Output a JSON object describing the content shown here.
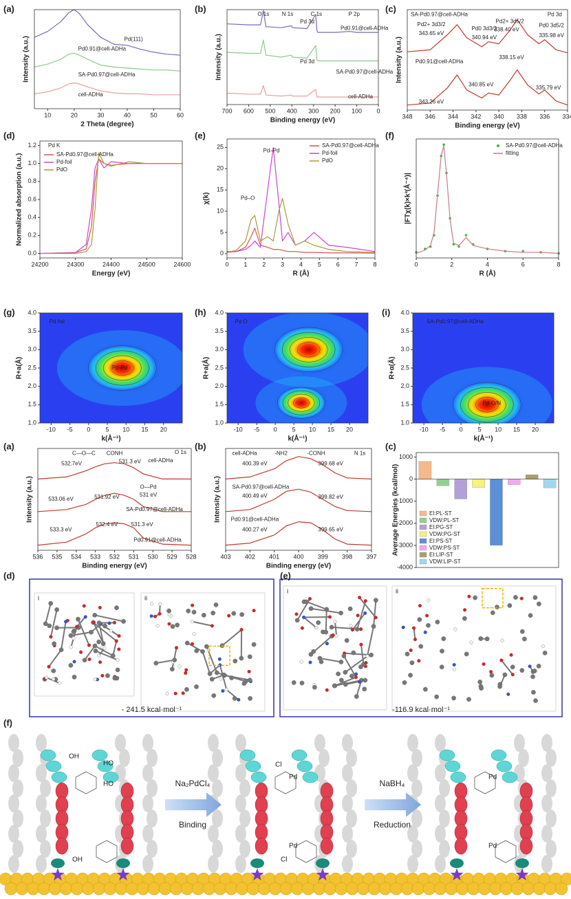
{
  "chart_data": [
    {
      "type": "line",
      "panel": "(a)",
      "xlabel": "2 Theta (degree)",
      "ylabel": "Intensity (a.u.)",
      "xlim": [
        5,
        60
      ],
      "xticks": [
        10,
        20,
        30,
        40,
        50,
        60
      ],
      "ylim": [
        0,
        1
      ],
      "legend": "inline",
      "annotations": [
        "Pd(111)"
      ],
      "x": [
        5,
        10,
        15,
        18,
        20,
        22,
        25,
        30,
        35,
        40,
        45,
        50,
        55,
        60
      ],
      "series": [
        {
          "name": "Pd0.91@cell-ADHa",
          "color": "#7b68b5",
          "values": [
            0.72,
            0.78,
            0.88,
            0.97,
            1.0,
            0.96,
            0.85,
            0.72,
            0.65,
            0.64,
            0.6,
            0.57,
            0.55,
            0.54
          ]
        },
        {
          "name": "SA-Pd0.97@cell-ADHa",
          "color": "#8cc98c",
          "values": [
            0.42,
            0.45,
            0.5,
            0.55,
            0.56,
            0.54,
            0.5,
            0.44,
            0.42,
            0.41,
            0.4,
            0.39,
            0.39,
            0.38
          ]
        },
        {
          "name": "cell-ADHa",
          "color": "#e8a0a0",
          "values": [
            0.15,
            0.17,
            0.21,
            0.25,
            0.26,
            0.25,
            0.22,
            0.18,
            0.16,
            0.15,
            0.15,
            0.14,
            0.14,
            0.14
          ]
        }
      ]
    },
    {
      "type": "line",
      "panel": "(b)",
      "xlabel": "Binding energy (eV)",
      "ylabel": "Intensity (a.u.)",
      "xlim": [
        700,
        0
      ],
      "xticks": [
        700,
        600,
        500,
        400,
        300,
        200,
        100,
        0
      ],
      "ylim": [
        0,
        1
      ],
      "legend": "inline",
      "annotations": [
        "O 1s",
        "N 1s",
        "C 1s",
        "P 2p",
        "Pd 3d",
        "Pd 3d"
      ],
      "x": [
        700,
        600,
        545,
        532,
        520,
        450,
        402,
        398,
        330,
        290,
        284,
        280,
        200,
        133,
        100,
        0
      ],
      "series": [
        {
          "name": "Pd0.91@cell-ADHa",
          "color": "#7b68b5",
          "values": [
            0.85,
            0.84,
            0.84,
            0.99,
            0.82,
            0.81,
            0.83,
            0.81,
            0.8,
            0.95,
            0.78,
            0.76,
            0.76,
            0.77,
            0.76,
            0.76
          ]
        },
        {
          "name": "SA-Pd0.97@cell-ADHa",
          "color": "#8cc98c",
          "values": [
            0.55,
            0.54,
            0.54,
            0.68,
            0.52,
            0.5,
            0.52,
            0.5,
            0.49,
            0.62,
            0.47,
            0.46,
            0.46,
            0.46,
            0.46,
            0.46
          ]
        },
        {
          "name": "cell-ADHa",
          "color": "#e8a0a0",
          "values": [
            0.12,
            0.11,
            0.11,
            0.2,
            0.1,
            0.09,
            0.1,
            0.09,
            0.09,
            0.16,
            0.08,
            0.08,
            0.08,
            0.08,
            0.08,
            0.08
          ]
        }
      ]
    },
    {
      "type": "line",
      "panel": "(c)",
      "xlabel": "Binding energy (eV)",
      "ylabel": "Intensity (a.u.)",
      "xlim": [
        348,
        334
      ],
      "xticks": [
        348,
        346,
        344,
        342,
        340,
        338,
        336,
        334
      ],
      "ylim": [
        0,
        1
      ],
      "annotations": [
        "Pd 3d",
        "SA-Pd0.97@cell-ADHa",
        "Pd2+ 3d3/2",
        "343.65 eV",
        "Pd2+ 3d5/2",
        "338.40 eV",
        "Pd0 3d3/2",
        "340.94 eV",
        "Pd0 3d5/2",
        "335.98 eV",
        "Pd0.91@cell-ADHa",
        "343.26 eV",
        "340.85 eV",
        "338.15 eV",
        "335.79 eV"
      ],
      "x": [
        348,
        346,
        344.5,
        343.65,
        342.8,
        341.5,
        340.9,
        340,
        339,
        338.4,
        337.5,
        336.5,
        336,
        335,
        334
      ],
      "series": [
        {
          "color": "#c0392b",
          "values": [
            0.58,
            0.6,
            0.75,
            0.85,
            0.72,
            0.63,
            0.68,
            0.66,
            0.8,
            0.9,
            0.75,
            0.66,
            0.7,
            0.6,
            0.57
          ]
        },
        {
          "color": "#c0392b",
          "values": [
            0.05,
            0.07,
            0.22,
            0.35,
            0.2,
            0.12,
            0.17,
            0.15,
            0.3,
            0.4,
            0.25,
            0.16,
            0.2,
            0.09,
            0.05
          ]
        }
      ]
    },
    {
      "type": "line",
      "panel": "(d)",
      "xlabel": "Energy (eV)",
      "ylabel": "Normalized absorption (a.u.)",
      "xlim": [
        24200,
        24600
      ],
      "xticks": [
        24200,
        24300,
        24400,
        24500,
        24600
      ],
      "ylim": [
        -0.05,
        1.25
      ],
      "yticks": [
        {
          "value": 0,
          "label": "0.0"
        },
        0.2,
        0.4,
        0.6,
        0.8,
        {
          "value": 1,
          "label": "1.0"
        },
        1.2
      ],
      "legend": "upper left",
      "annotations": [
        "Pd K"
      ],
      "x": [
        24200,
        24300,
        24330,
        24345,
        24355,
        24365,
        24380,
        24400,
        24450,
        24500,
        24600
      ],
      "series": [
        {
          "name": "SA-Pd0.97@cell-ADHa",
          "color": "#d9534f",
          "values": [
            0.0,
            0.01,
            0.05,
            0.3,
            0.8,
            1.05,
            1.0,
            0.98,
            1.0,
            1.0,
            1.0
          ]
        },
        {
          "name": "Pd-foil",
          "color": "#cc44cc",
          "values": [
            0.0,
            0.01,
            0.1,
            0.5,
            0.95,
            1.05,
            0.95,
            1.02,
            1.0,
            1.0,
            1.0
          ]
        },
        {
          "name": "PdO",
          "color": "#a89a3a",
          "values": [
            0.0,
            0.0,
            0.02,
            0.1,
            0.5,
            1.12,
            1.0,
            0.97,
            1.02,
            1.0,
            1.0
          ]
        }
      ]
    },
    {
      "type": "line",
      "panel": "(e)",
      "xlabel": "R (Å)",
      "ylabel": "χ(k)",
      "xlim": [
        0,
        8
      ],
      "xticks": [
        0,
        1,
        2,
        3,
        4,
        5,
        6,
        7,
        8
      ],
      "ylim": [
        -1,
        27
      ],
      "yticks": [
        0,
        5,
        10,
        15,
        20,
        25
      ],
      "legend": "upper right",
      "annotations": [
        "Pd–Pd",
        "Pd–O"
      ],
      "x": [
        0,
        0.5,
        1,
        1.3,
        1.5,
        1.8,
        2.2,
        2.5,
        2.8,
        3.0,
        3.3,
        3.7,
        4.2,
        4.7,
        5.5,
        6.5,
        8
      ],
      "series": [
        {
          "name": "SA-Pd0.97@cell-ADHa",
          "color": "#d9534f",
          "values": [
            0.5,
            0.5,
            1.5,
            4,
            6,
            2,
            1.5,
            1,
            1,
            0.8,
            0.5,
            0.5,
            0.3,
            0.3,
            0.2,
            0.2,
            0.1
          ]
        },
        {
          "name": "Pd-foil",
          "color": "#cc44cc",
          "values": [
            0.3,
            0.5,
            1,
            2,
            3,
            1.5,
            15,
            25,
            12,
            3,
            5,
            2,
            3,
            5,
            2,
            1.5,
            0.5
          ]
        },
        {
          "name": "PdO",
          "color": "#a89a3a",
          "values": [
            0.3,
            0.8,
            3,
            8,
            9,
            3,
            4,
            3,
            10,
            13,
            7,
            2,
            3,
            2,
            1,
            0.5,
            0.3
          ]
        }
      ]
    },
    {
      "type": "line",
      "panel": "(f)",
      "xlabel": "R (Å)",
      "ylabel": "|FTχ(k)×k³(Å⁻⁴)|",
      "xlim": [
        0,
        8
      ],
      "xticks": [
        0,
        2,
        4,
        6,
        8
      ],
      "ylim": [
        0,
        1.05
      ],
      "legend": "upper right",
      "x": [
        0,
        0.5,
        0.8,
        1,
        1.2,
        1.4,
        1.55,
        1.7,
        1.9,
        2.1,
        2.4,
        2.8,
        3.2,
        4,
        5,
        6,
        7,
        8
      ],
      "series": [
        {
          "name": "SA-Pd0.97@cell-ADHa",
          "color": "#3fb83f",
          "mode": "markers",
          "values": [
            0.05,
            0.08,
            0.1,
            0.2,
            0.55,
            0.9,
            1.0,
            0.75,
            0.35,
            0.12,
            0.1,
            0.2,
            0.12,
            0.08,
            0.06,
            0.06,
            0.05,
            0.04
          ]
        },
        {
          "name": "fitting",
          "color": "#c77a8a",
          "values": [
            0.04,
            0.07,
            0.11,
            0.22,
            0.56,
            0.9,
            0.99,
            0.74,
            0.34,
            0.13,
            0.11,
            0.18,
            0.11,
            0.08,
            0.06,
            0.05,
            0.05,
            0.04
          ]
        }
      ]
    },
    {
      "type": "heatmap",
      "panel": "(g)",
      "xlabel": "k(Å⁻¹)",
      "ylabel": "R+a(Å)",
      "xlim": [
        -13,
        25
      ],
      "xticks": [
        -10,
        -5,
        0,
        5,
        10,
        15,
        20
      ],
      "ylim": [
        1,
        4
      ],
      "yticks": [
        {
          "value": 1,
          "label": "1.0"
        },
        1.5,
        {
          "value": 2,
          "label": "2.0"
        },
        2.5,
        {
          "value": 3,
          "label": "3.0"
        },
        3.5,
        {
          "value": 4,
          "label": "4.0"
        }
      ],
      "annotations": [
        "Pd foil",
        "Pd-Pd"
      ],
      "x": [
        9
      ],
      "y": [
        2.5
      ],
      "values": [
        1
      ]
    },
    {
      "type": "heatmap",
      "panel": "(h)",
      "xlabel": "k(Å⁻¹)",
      "ylabel": "R+a(Å)",
      "xlim": [
        -13,
        25
      ],
      "xticks": [
        -10,
        -5,
        0,
        5,
        10,
        15,
        20
      ],
      "ylim": [
        1,
        4
      ],
      "yticks": [
        {
          "value": 1,
          "label": "1.0"
        },
        1.5,
        {
          "value": 2,
          "label": "2.0"
        },
        2.5,
        {
          "value": 3,
          "label": "3.0"
        },
        3.5,
        {
          "value": 4,
          "label": "4.0"
        }
      ],
      "annotations": [
        "Pd O"
      ],
      "x": [
        9,
        7
      ],
      "y": [
        3.0,
        1.55
      ],
      "values": [
        1,
        0.7
      ]
    },
    {
      "type": "heatmap",
      "panel": "(i)",
      "xlabel": "k(Å⁻¹)",
      "ylabel": "R+α(Å)",
      "xlim": [
        -13,
        25
      ],
      "xticks": [
        -10,
        -5,
        0,
        5,
        10,
        15,
        20
      ],
      "ylim": [
        1,
        4
      ],
      "yticks": [
        {
          "value": 1,
          "label": "1.0"
        },
        1.5,
        {
          "value": 2,
          "label": "2.0"
        },
        2.5,
        {
          "value": 3,
          "label": "3.0"
        },
        3.5,
        {
          "value": 4,
          "label": "4.0"
        }
      ],
      "annotations": [
        "SA-Pd0.97@cell-ADHa",
        "Pd-O/N"
      ],
      "x": [
        7
      ],
      "y": [
        1.5
      ],
      "values": [
        1
      ]
    },
    {
      "type": "line",
      "panel": "(a)",
      "xlabel": "Binding energy (eV)",
      "ylabel": "Intensity (a.u.)",
      "xlim": [
        536,
        528
      ],
      "xticks": [
        536,
        535,
        534,
        533,
        532,
        531,
        530,
        529,
        528
      ],
      "ylim": [
        0,
        1
      ],
      "annotations": [
        "C—O—C",
        "CONH",
        "cell-ADHa",
        "O 1s",
        "532.7eV",
        "531.3 eV",
        "O—Pd",
        "531 eV",
        "533.06 eV",
        "531.92 eV",
        "SA-Pd0.97@cell-ADHa",
        "533.3 eV",
        "532.4 eV",
        "531.3 eV",
        "Pd0.91@cell-ADHa"
      ],
      "x": [
        536,
        534.5,
        533.5,
        533,
        532.5,
        532,
        531.5,
        531,
        530.5,
        529.5,
        528
      ],
      "series": [
        {
          "color": "#c0392b",
          "values": [
            0.7,
            0.72,
            0.78,
            0.82,
            0.85,
            0.86,
            0.85,
            0.81,
            0.75,
            0.7,
            0.7
          ]
        },
        {
          "color": "#c0392b",
          "values": [
            0.38,
            0.4,
            0.45,
            0.5,
            0.54,
            0.56,
            0.54,
            0.5,
            0.43,
            0.38,
            0.38
          ]
        },
        {
          "color": "#c0392b",
          "values": [
            0.05,
            0.08,
            0.16,
            0.22,
            0.26,
            0.27,
            0.26,
            0.22,
            0.12,
            0.06,
            0.05
          ]
        }
      ]
    },
    {
      "type": "line",
      "panel": "(b)",
      "xlabel": "Binding energy (eV)",
      "ylabel": "Intensity (a.u.)",
      "xlim": [
        403,
        397
      ],
      "xticks": [
        403,
        402,
        401,
        400,
        399,
        398,
        397
      ],
      "ylim": [
        0,
        1
      ],
      "annotations": [
        "cell-ADHa",
        "-NH2",
        "-CONH",
        "N 1s",
        "400.39 eV",
        "399.68 eV",
        "SA-Pd0.97@cell-ADHa",
        "400.49 eV",
        "399.82 eV",
        "Pd0.91@cell-ADHa",
        "400.27 eV",
        "399.65 eV"
      ],
      "x": [
        403,
        402,
        401,
        400.5,
        400,
        399.5,
        399,
        398.5,
        398,
        397
      ],
      "series": [
        {
          "color": "#c0392b",
          "values": [
            0.7,
            0.72,
            0.8,
            0.88,
            0.92,
            0.9,
            0.84,
            0.76,
            0.71,
            0.7
          ]
        },
        {
          "color": "#c0392b",
          "values": [
            0.38,
            0.4,
            0.5,
            0.58,
            0.6,
            0.57,
            0.5,
            0.43,
            0.39,
            0.38
          ]
        },
        {
          "color": "#c0392b",
          "values": [
            0.05,
            0.07,
            0.15,
            0.24,
            0.28,
            0.27,
            0.2,
            0.11,
            0.06,
            0.05
          ]
        }
      ]
    },
    {
      "type": "bar",
      "panel": "(c)",
      "ylabel": "Average Energies (kcal/mol)",
      "ylim": [
        -4000,
        1200
      ],
      "yticks": [
        -4000,
        -3000,
        -2000,
        -1000,
        0,
        1000
      ],
      "legend": "lower left",
      "categories": [
        "EI:PL-ST",
        "VDW:PL-ST",
        "EI:PG-ST",
        "VDW:PG-ST",
        "EI:PS-ST",
        "VDW:PS-ST",
        "EI:LIP-ST",
        "VDW:LIP-ST"
      ],
      "values": [
        800,
        -300,
        -900,
        -380,
        -3000,
        -250,
        200,
        -400
      ],
      "colors": [
        "#f8b98a",
        "#8fd18f",
        "#b4a0d8",
        "#f6f27a",
        "#5b8fd6",
        "#f4a6f0",
        "#a89f6a",
        "#9fd8ee"
      ]
    }
  ],
  "models": [
    {
      "panel": "(d)",
      "parts": [
        "i",
        "ii"
      ],
      "energy": "- 241.5 kcal·mol⁻¹"
    },
    {
      "panel": "(e)",
      "parts": [
        "i",
        "ii"
      ],
      "energy": "-116.9 kcal·mol⁻¹"
    }
  ],
  "scheme": {
    "panel": "(f)",
    "steps": [
      {
        "reagent": "Na₂PdCl₄",
        "action": "Binding"
      },
      {
        "reagent": "NaBH₄",
        "action": "Reduction"
      }
    ],
    "labels": {
      "oh": "OH",
      "ho": "HO",
      "pd": "Pd",
      "cl": "Cl"
    }
  }
}
